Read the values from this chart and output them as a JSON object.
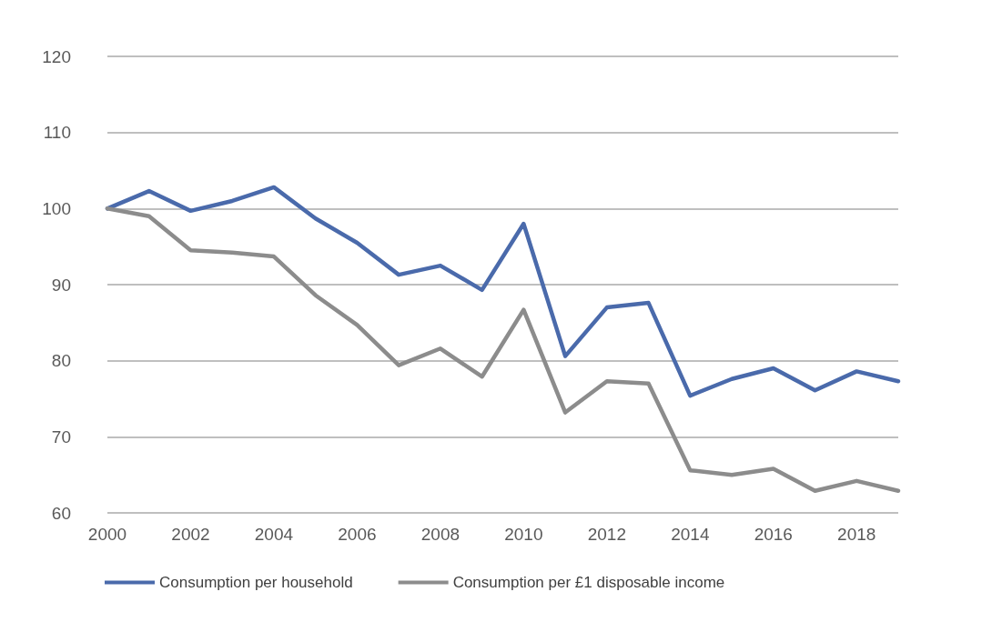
{
  "chart_data": {
    "type": "line",
    "categories": [
      "2000",
      null,
      "2002",
      null,
      "2004",
      null,
      "2006",
      null,
      "2008",
      null,
      "2010",
      null,
      "2012",
      null,
      "2014",
      null,
      "2016",
      null,
      "2018",
      null
    ],
    "series": [
      {
        "name": "Consumption per household",
        "color": "#4a6aab",
        "values": [
          100,
          102.3,
          99.7,
          101,
          102.8,
          98.7,
          95.5,
          91.3,
          92.5,
          89.3,
          98,
          80.6,
          87,
          87.6,
          75.4,
          77.6,
          79,
          76.1,
          78.6,
          77.3
        ]
      },
      {
        "name": "Consumption per £1 disposable income",
        "color": "#8c8c8c",
        "values": [
          100,
          99,
          94.5,
          94.2,
          93.7,
          88.6,
          84.7,
          79.4,
          81.6,
          77.9,
          86.7,
          73.2,
          77.3,
          77,
          65.6,
          65,
          65.8,
          62.9,
          64.2,
          62.9
        ]
      }
    ],
    "ylim": [
      60,
      120
    ],
    "yticks": [
      60,
      70,
      80,
      90,
      100,
      110,
      120
    ],
    "grid": "y",
    "legend": "bottom",
    "marker": "none",
    "line_style": "solid"
  }
}
